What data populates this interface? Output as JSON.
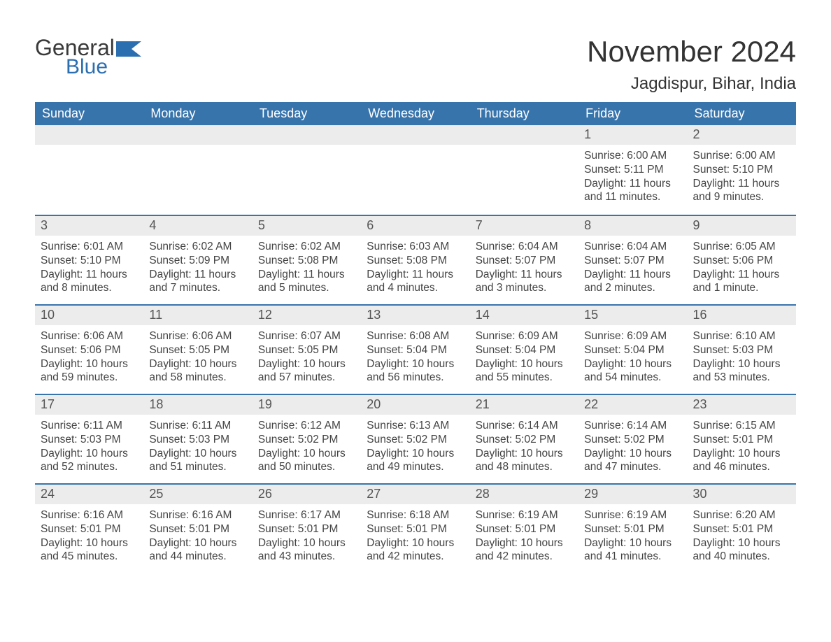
{
  "logo": {
    "text_general": "General",
    "text_blue": "Blue",
    "flag_color": "#2c6fb0"
  },
  "header": {
    "title": "November 2024",
    "location": "Jagdispur, Bihar, India"
  },
  "colors": {
    "header_bg": "#3874ac",
    "header_text": "#ffffff",
    "daynum_bg": "#ececec",
    "week_border": "#3874ac",
    "body_text": "#444444"
  },
  "day_names": [
    "Sunday",
    "Monday",
    "Tuesday",
    "Wednesday",
    "Thursday",
    "Friday",
    "Saturday"
  ],
  "weeks": [
    [
      {
        "num": "",
        "sunrise": "",
        "sunset": "",
        "daylight": ""
      },
      {
        "num": "",
        "sunrise": "",
        "sunset": "",
        "daylight": ""
      },
      {
        "num": "",
        "sunrise": "",
        "sunset": "",
        "daylight": ""
      },
      {
        "num": "",
        "sunrise": "",
        "sunset": "",
        "daylight": ""
      },
      {
        "num": "",
        "sunrise": "",
        "sunset": "",
        "daylight": ""
      },
      {
        "num": "1",
        "sunrise": "Sunrise: 6:00 AM",
        "sunset": "Sunset: 5:11 PM",
        "daylight": "Daylight: 11 hours and 11 minutes."
      },
      {
        "num": "2",
        "sunrise": "Sunrise: 6:00 AM",
        "sunset": "Sunset: 5:10 PM",
        "daylight": "Daylight: 11 hours and 9 minutes."
      }
    ],
    [
      {
        "num": "3",
        "sunrise": "Sunrise: 6:01 AM",
        "sunset": "Sunset: 5:10 PM",
        "daylight": "Daylight: 11 hours and 8 minutes."
      },
      {
        "num": "4",
        "sunrise": "Sunrise: 6:02 AM",
        "sunset": "Sunset: 5:09 PM",
        "daylight": "Daylight: 11 hours and 7 minutes."
      },
      {
        "num": "5",
        "sunrise": "Sunrise: 6:02 AM",
        "sunset": "Sunset: 5:08 PM",
        "daylight": "Daylight: 11 hours and 5 minutes."
      },
      {
        "num": "6",
        "sunrise": "Sunrise: 6:03 AM",
        "sunset": "Sunset: 5:08 PM",
        "daylight": "Daylight: 11 hours and 4 minutes."
      },
      {
        "num": "7",
        "sunrise": "Sunrise: 6:04 AM",
        "sunset": "Sunset: 5:07 PM",
        "daylight": "Daylight: 11 hours and 3 minutes."
      },
      {
        "num": "8",
        "sunrise": "Sunrise: 6:04 AM",
        "sunset": "Sunset: 5:07 PM",
        "daylight": "Daylight: 11 hours and 2 minutes."
      },
      {
        "num": "9",
        "sunrise": "Sunrise: 6:05 AM",
        "sunset": "Sunset: 5:06 PM",
        "daylight": "Daylight: 11 hours and 1 minute."
      }
    ],
    [
      {
        "num": "10",
        "sunrise": "Sunrise: 6:06 AM",
        "sunset": "Sunset: 5:06 PM",
        "daylight": "Daylight: 10 hours and 59 minutes."
      },
      {
        "num": "11",
        "sunrise": "Sunrise: 6:06 AM",
        "sunset": "Sunset: 5:05 PM",
        "daylight": "Daylight: 10 hours and 58 minutes."
      },
      {
        "num": "12",
        "sunrise": "Sunrise: 6:07 AM",
        "sunset": "Sunset: 5:05 PM",
        "daylight": "Daylight: 10 hours and 57 minutes."
      },
      {
        "num": "13",
        "sunrise": "Sunrise: 6:08 AM",
        "sunset": "Sunset: 5:04 PM",
        "daylight": "Daylight: 10 hours and 56 minutes."
      },
      {
        "num": "14",
        "sunrise": "Sunrise: 6:09 AM",
        "sunset": "Sunset: 5:04 PM",
        "daylight": "Daylight: 10 hours and 55 minutes."
      },
      {
        "num": "15",
        "sunrise": "Sunrise: 6:09 AM",
        "sunset": "Sunset: 5:04 PM",
        "daylight": "Daylight: 10 hours and 54 minutes."
      },
      {
        "num": "16",
        "sunrise": "Sunrise: 6:10 AM",
        "sunset": "Sunset: 5:03 PM",
        "daylight": "Daylight: 10 hours and 53 minutes."
      }
    ],
    [
      {
        "num": "17",
        "sunrise": "Sunrise: 6:11 AM",
        "sunset": "Sunset: 5:03 PM",
        "daylight": "Daylight: 10 hours and 52 minutes."
      },
      {
        "num": "18",
        "sunrise": "Sunrise: 6:11 AM",
        "sunset": "Sunset: 5:03 PM",
        "daylight": "Daylight: 10 hours and 51 minutes."
      },
      {
        "num": "19",
        "sunrise": "Sunrise: 6:12 AM",
        "sunset": "Sunset: 5:02 PM",
        "daylight": "Daylight: 10 hours and 50 minutes."
      },
      {
        "num": "20",
        "sunrise": "Sunrise: 6:13 AM",
        "sunset": "Sunset: 5:02 PM",
        "daylight": "Daylight: 10 hours and 49 minutes."
      },
      {
        "num": "21",
        "sunrise": "Sunrise: 6:14 AM",
        "sunset": "Sunset: 5:02 PM",
        "daylight": "Daylight: 10 hours and 48 minutes."
      },
      {
        "num": "22",
        "sunrise": "Sunrise: 6:14 AM",
        "sunset": "Sunset: 5:02 PM",
        "daylight": "Daylight: 10 hours and 47 minutes."
      },
      {
        "num": "23",
        "sunrise": "Sunrise: 6:15 AM",
        "sunset": "Sunset: 5:01 PM",
        "daylight": "Daylight: 10 hours and 46 minutes."
      }
    ],
    [
      {
        "num": "24",
        "sunrise": "Sunrise: 6:16 AM",
        "sunset": "Sunset: 5:01 PM",
        "daylight": "Daylight: 10 hours and 45 minutes."
      },
      {
        "num": "25",
        "sunrise": "Sunrise: 6:16 AM",
        "sunset": "Sunset: 5:01 PM",
        "daylight": "Daylight: 10 hours and 44 minutes."
      },
      {
        "num": "26",
        "sunrise": "Sunrise: 6:17 AM",
        "sunset": "Sunset: 5:01 PM",
        "daylight": "Daylight: 10 hours and 43 minutes."
      },
      {
        "num": "27",
        "sunrise": "Sunrise: 6:18 AM",
        "sunset": "Sunset: 5:01 PM",
        "daylight": "Daylight: 10 hours and 42 minutes."
      },
      {
        "num": "28",
        "sunrise": "Sunrise: 6:19 AM",
        "sunset": "Sunset: 5:01 PM",
        "daylight": "Daylight: 10 hours and 42 minutes."
      },
      {
        "num": "29",
        "sunrise": "Sunrise: 6:19 AM",
        "sunset": "Sunset: 5:01 PM",
        "daylight": "Daylight: 10 hours and 41 minutes."
      },
      {
        "num": "30",
        "sunrise": "Sunrise: 6:20 AM",
        "sunset": "Sunset: 5:01 PM",
        "daylight": "Daylight: 10 hours and 40 minutes."
      }
    ]
  ]
}
